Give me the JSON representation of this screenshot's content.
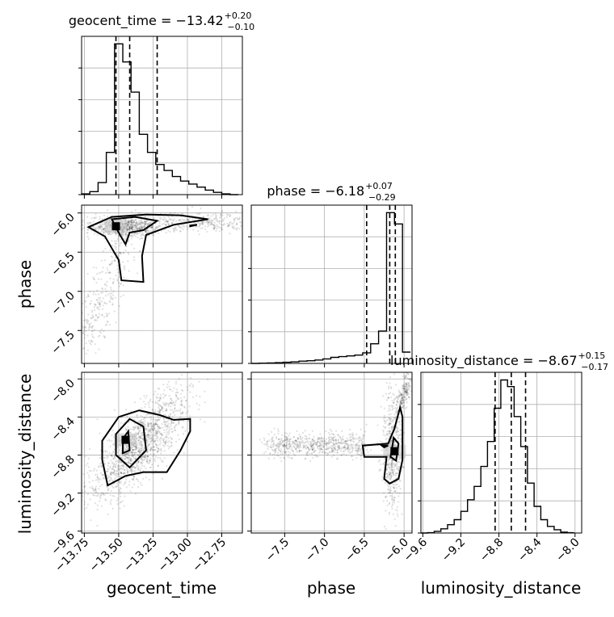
{
  "chart_data": {
    "type": "corner",
    "parameters": [
      "geocent_time",
      "phase",
      "luminosity_distance"
    ],
    "axis_labels": {
      "geocent_time": "geocent_time",
      "phase": "phase",
      "luminosity_distance": "luminosity_distance"
    },
    "titles": [
      {
        "param": "geocent_time",
        "text": "geocent_time = −13.42",
        "sup": "+0.20",
        "sub": "−0.10"
      },
      {
        "param": "phase",
        "text": "phase = −6.18",
        "sup": "+0.07",
        "sub": "−0.29"
      },
      {
        "param": "luminosity_distance",
        "text": "luminosity_distance = −8.67",
        "sup": "+0.15",
        "sub": "−0.17"
      }
    ],
    "quantiles": {
      "geocent_time": [
        -13.52,
        -13.42,
        -13.22
      ],
      "phase": [
        -6.47,
        -6.18,
        -6.11
      ],
      "luminosity_distance": [
        -8.84,
        -8.67,
        -8.52
      ]
    },
    "ranges": {
      "geocent_time": [
        -13.77,
        -12.6
      ],
      "phase": [
        -7.92,
        -5.9
      ],
      "luminosity_distance": [
        -9.62,
        -7.93
      ]
    },
    "ticks": {
      "geocent_time": {
        "values": [
          -13.75,
          -13.5,
          -13.25,
          -13.0,
          -12.75
        ],
        "labels": [
          "−13.75",
          "−13.50",
          "−13.25",
          "−13.00",
          "−12.75"
        ]
      },
      "phase_x": {
        "values": [
          -7.5,
          -7.0,
          -6.5,
          -6.0
        ],
        "labels": [
          "−7.5",
          "−7.0",
          "−6.5",
          "−6.0"
        ]
      },
      "phase_y": {
        "values": [
          -6.0,
          -6.5,
          -7.0,
          -7.5
        ],
        "labels": [
          "−6.0",
          "−6.5",
          "−7.0",
          "−7.5"
        ]
      },
      "luminosity_distance": {
        "values": [
          -9.6,
          -9.2,
          -8.8,
          -8.4,
          -8.0
        ],
        "labels": [
          "−9.6",
          "−9.2",
          "−8.8",
          "−8.4",
          "−8.0"
        ]
      }
    },
    "histograms": {
      "geocent_time": {
        "bins": [
          -13.77,
          -13.71,
          -13.65,
          -13.59,
          -13.53,
          -13.47,
          -13.41,
          -13.35,
          -13.29,
          -13.23,
          -13.17,
          -13.11,
          -13.05,
          -12.99,
          -12.93,
          -12.87,
          -12.81,
          -12.75,
          -12.69,
          -12.63
        ],
        "counts": [
          0.5,
          2,
          8,
          28,
          100,
          88,
          68,
          40,
          28,
          20,
          16,
          12,
          9,
          7,
          5,
          3,
          1.5,
          0.5,
          0
        ]
      },
      "phase": {
        "bins": [
          -7.92,
          -7.82,
          -7.72,
          -7.62,
          -7.52,
          -7.42,
          -7.32,
          -7.22,
          -7.12,
          -7.02,
          -6.92,
          -6.82,
          -6.72,
          -6.62,
          -6.52,
          -6.42,
          -6.32,
          -6.22,
          -6.12,
          -6.02,
          -5.92
        ],
        "counts": [
          0,
          0.3,
          0.6,
          1,
          1.5,
          2,
          3,
          3.5,
          4.5,
          6,
          8,
          9,
          10,
          11,
          14,
          26,
          43,
          200,
          185,
          15
        ]
      },
      "luminosity_distance": {
        "bins": [
          -9.62,
          -9.55,
          -9.48,
          -9.41,
          -9.34,
          -9.27,
          -9.2,
          -9.13,
          -9.06,
          -8.99,
          -8.92,
          -8.85,
          -8.78,
          -8.71,
          -8.64,
          -8.57,
          -8.5,
          -8.43,
          -8.36,
          -8.29,
          -8.22,
          -8.15,
          -8.08,
          -8.01
        ],
        "counts": [
          0,
          0.2,
          1,
          2.5,
          5,
          8,
          13,
          20,
          28,
          40,
          55,
          75,
          92,
          88,
          70,
          52,
          30,
          16,
          8,
          4,
          2,
          0.5,
          0.2
        ]
      }
    },
    "density_2d": {
      "phase_vs_geocent_time": {
        "peak": [
          -13.52,
          -6.17
        ],
        "contours": [
          [
            [
              -13.72,
              -6.18
            ],
            [
              -13.55,
              -6.05
            ],
            [
              -13.3,
              -6.02
            ],
            [
              -13.05,
              -6.03
            ],
            [
              -12.85,
              -6.08
            ],
            [
              -13.1,
              -6.15
            ],
            [
              -13.3,
              -6.28
            ],
            [
              -13.33,
              -6.55
            ],
            [
              -13.32,
              -6.88
            ],
            [
              -13.48,
              -6.86
            ],
            [
              -13.5,
              -6.6
            ],
            [
              -13.6,
              -6.3
            ],
            [
              -13.72,
              -6.18
            ]
          ],
          [
            [
              -13.55,
              -6.08
            ],
            [
              -13.38,
              -6.05
            ],
            [
              -13.22,
              -6.1
            ],
            [
              -13.32,
              -6.22
            ],
            [
              -13.42,
              -6.25
            ],
            [
              -13.45,
              -6.4
            ],
            [
              -13.5,
              -6.25
            ],
            [
              -13.55,
              -6.08
            ]
          ],
          [
            [
              -12.98,
              -6.16
            ],
            [
              -12.93,
              -6.15
            ],
            [
              -12.98,
              -6.17
            ],
            [
              -12.98,
              -6.16
            ]
          ]
        ]
      },
      "luminosity_distance_vs_geocent_time": {
        "peak": [
          -13.45,
          -8.64
        ],
        "contours": [
          [
            [
              -13.62,
              -8.65
            ],
            [
              -13.5,
              -8.4
            ],
            [
              -13.35,
              -8.33
            ],
            [
              -13.2,
              -8.38
            ],
            [
              -13.1,
              -8.43
            ],
            [
              -12.98,
              -8.42
            ],
            [
              -12.98,
              -8.55
            ],
            [
              -13.05,
              -8.75
            ],
            [
              -13.15,
              -8.98
            ],
            [
              -13.32,
              -8.98
            ],
            [
              -13.45,
              -9.02
            ],
            [
              -13.58,
              -9.12
            ],
            [
              -13.62,
              -8.85
            ],
            [
              -13.62,
              -8.65
            ]
          ],
          [
            [
              -13.52,
              -8.58
            ],
            [
              -13.42,
              -8.42
            ],
            [
              -13.32,
              -8.5
            ],
            [
              -13.3,
              -8.75
            ],
            [
              -13.42,
              -8.93
            ],
            [
              -13.52,
              -8.8
            ],
            [
              -13.52,
              -8.58
            ]
          ],
          [
            [
              -13.47,
              -8.63
            ],
            [
              -13.43,
              -8.55
            ],
            [
              -13.42,
              -8.75
            ],
            [
              -13.47,
              -8.78
            ],
            [
              -13.47,
              -8.63
            ]
          ]
        ]
      },
      "luminosity_distance_vs_phase": {
        "peak": [
          -6.12,
          -8.76
        ],
        "contours": [
          [
            [
              -6.05,
              -8.3
            ],
            [
              -6.02,
              -8.4
            ],
            [
              -6.02,
              -8.85
            ],
            [
              -6.07,
              -9.05
            ],
            [
              -6.18,
              -9.1
            ],
            [
              -6.25,
              -9.05
            ],
            [
              -6.22,
              -8.82
            ],
            [
              -6.5,
              -8.82
            ],
            [
              -6.52,
              -8.7
            ],
            [
              -6.2,
              -8.68
            ],
            [
              -6.12,
              -8.52
            ],
            [
              -6.05,
              -8.3
            ]
          ],
          [
            [
              -6.13,
              -8.62
            ],
            [
              -6.07,
              -8.68
            ],
            [
              -6.1,
              -8.86
            ],
            [
              -6.17,
              -8.82
            ],
            [
              -6.13,
              -8.62
            ]
          ],
          [
            [
              -6.28,
              -8.7
            ],
            [
              -6.2,
              -8.7
            ],
            [
              -6.25,
              -8.72
            ],
            [
              -6.28,
              -8.7
            ]
          ]
        ]
      }
    },
    "grid": true
  }
}
